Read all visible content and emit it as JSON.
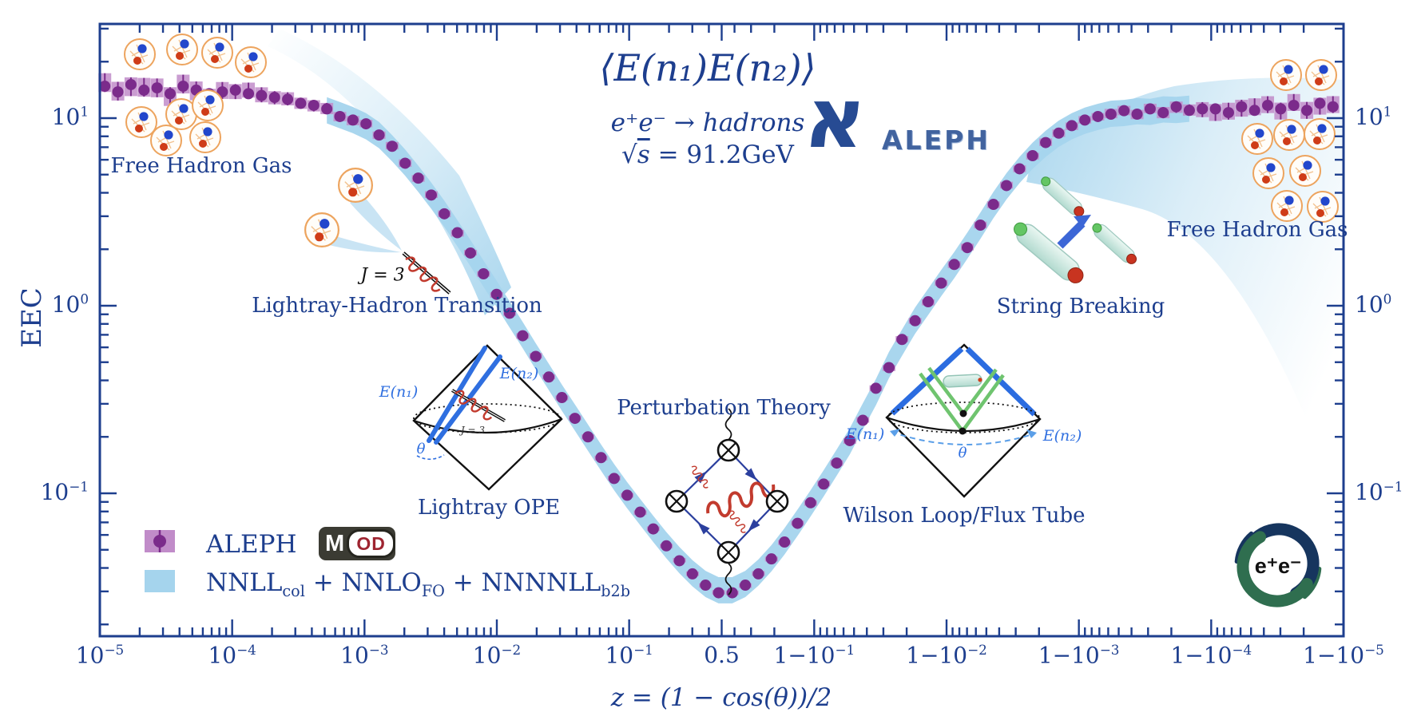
{
  "colors": {
    "navy": "#1d3e8e",
    "band": "#a5d4ed",
    "marker": "#7b2b8b",
    "error_box": "#c18cc9",
    "coil_red": "#c23b2e",
    "line_blue": "#2f6fe0",
    "feyn_blue": "#2b3f9e",
    "green": "#6fc46f",
    "hadron_ring": "#eda45e",
    "hadron_blue": "#2247cc",
    "hadron_red": "#cf3c18",
    "mod_bg": "#3b3b33",
    "mod_red": "#9e2430"
  },
  "title": {
    "correlator": "⟨E(n₁)E(n₂)⟩",
    "process": "e⁺e⁻ → hadrons",
    "energy": {
      "rad": "√",
      "var": "s",
      "rest": " = 91.2GeV"
    }
  },
  "aleph_logo": {
    "glyph": "א",
    "text": "ALEPH"
  },
  "collider_logo": {
    "text": "e⁺e⁻"
  },
  "axis": {
    "x_label": "z = (1 − cos(θ))/2",
    "y_label": "EEC"
  },
  "annotations": {
    "free_hadron_gas_left": "Free Hadron Gas",
    "free_hadron_gas_right": "Free Hadron Gas",
    "lightray_transition": "Lightray-Hadron Transition",
    "j_equals_3": "J = 3",
    "lightray_ope": "Lightray OPE",
    "perturbation_theory": "Perturbation Theory",
    "wilson_loop": "Wilson Loop/Flux Tube",
    "string_breaking": "String Breaking",
    "energy_n1": "E(n₁)",
    "energy_n2": "E(n₂)",
    "theta": "θ",
    "j3_small": "J = 3"
  },
  "legend": {
    "aleph": "ALEPH",
    "mod": {
      "m": "M",
      "od": "OD"
    },
    "theory": [
      {
        "t": "NNLL",
        "s": "col"
      },
      {
        "t": " + NNLO",
        "s": "FO"
      },
      {
        "t": " + NNNNLL",
        "s": "b2b"
      }
    ]
  },
  "chart_data": {
    "type": "scatter",
    "title": "⟨E(n₁)E(n₂)⟩  e⁺e⁻ → hadrons  √s = 91.2GeV",
    "xlabel": "z = (1 − cos(θ))/2",
    "ylabel": "EEC",
    "x_scale": "double-log: log10(z) for z<0.5, mirrored log10(1−z) for z>0.5",
    "ylim": [
      0.017,
      32
    ],
    "grid": false,
    "legend_position": "lower left",
    "x_ticks": [
      {
        "pre": "10",
        "exp": "−5",
        "frac": 0.0
      },
      {
        "pre": "10",
        "exp": "−4",
        "frac": 0.1064
      },
      {
        "pre": "10",
        "exp": "−3",
        "frac": 0.2128
      },
      {
        "pre": "10",
        "exp": "−2",
        "frac": 0.3192
      },
      {
        "pre": "10",
        "exp": "−1",
        "frac": 0.4256
      },
      {
        "pre": "0.5",
        "exp": "",
        "frac": 0.5
      },
      {
        "pre": "1−10",
        "exp": "−1",
        "frac": 0.5744
      },
      {
        "pre": "1−10",
        "exp": "−2",
        "frac": 0.6808
      },
      {
        "pre": "1−10",
        "exp": "−3",
        "frac": 0.7872
      },
      {
        "pre": "1−10",
        "exp": "−4",
        "frac": 0.8936
      },
      {
        "pre": "1−10",
        "exp": "−5",
        "frac": 1.0
      }
    ],
    "y_ticks": [
      {
        "pre": "10",
        "exp": "1",
        "value": 10
      },
      {
        "pre": "10",
        "exp": "0",
        "value": 1
      },
      {
        "pre": "10",
        "exp": "−1",
        "value": 0.1
      }
    ],
    "series": [
      {
        "name": "ALEPH MOD",
        "style": "points"
      },
      {
        "name": "NNLL_col + NNLO_FO + NNNNLL_b2b",
        "style": "band",
        "halfwidth_dex": 0.07,
        "t_range": [
          0.175,
          0.878
        ]
      }
    ],
    "points": [
      [
        0.004,
        14.8,
        0.05
      ],
      [
        0.0145,
        13.8,
        0.05
      ],
      [
        0.025,
        15.1,
        0.05
      ],
      [
        0.0355,
        14.1,
        0.05
      ],
      [
        0.046,
        14.5,
        0.05
      ],
      [
        0.0565,
        13.5,
        0.05
      ],
      [
        0.067,
        14.8,
        0.05
      ],
      [
        0.0775,
        14.1,
        0.05
      ],
      [
        0.088,
        13.5,
        0.045
      ],
      [
        0.0985,
        13.8,
        0.045
      ],
      [
        0.109,
        14.1,
        0.04
      ],
      [
        0.1195,
        13.5,
        0.04
      ],
      [
        0.13,
        13.2,
        0.04
      ],
      [
        0.1405,
        12.9,
        0.035
      ],
      [
        0.151,
        12.6,
        0.035
      ],
      [
        0.1615,
        12.0,
        0.03
      ],
      [
        0.172,
        11.7,
        0.03
      ],
      [
        0.1825,
        11.2,
        0.03
      ],
      [
        0.193,
        10.2,
        0.025
      ],
      [
        0.2035,
        9.77,
        0.025
      ],
      [
        0.214,
        9.33,
        0.02
      ],
      [
        0.2245,
        8.13,
        0.02
      ],
      [
        0.235,
        7.08,
        0.02
      ],
      [
        0.2455,
        5.75,
        0.02
      ],
      [
        0.256,
        4.79,
        0.018
      ],
      [
        0.2665,
        3.89,
        0.018
      ],
      [
        0.277,
        3.09,
        0.018
      ],
      [
        0.2875,
        2.45,
        0.018
      ],
      [
        0.298,
        1.91,
        0.015
      ],
      [
        0.3085,
        1.48,
        0.015
      ],
      [
        0.319,
        1.15,
        0.015
      ],
      [
        0.3295,
        0.912,
        0.015
      ],
      [
        0.34,
        0.692,
        0.015
      ],
      [
        0.3505,
        0.537,
        0.015
      ],
      [
        0.361,
        0.417,
        0.013
      ],
      [
        0.3715,
        0.324,
        0.013
      ],
      [
        0.382,
        0.251,
        0.013
      ],
      [
        0.3925,
        0.2,
        0.013
      ],
      [
        0.403,
        0.155,
        0.013
      ],
      [
        0.4135,
        0.12,
        0.013
      ],
      [
        0.424,
        0.0977,
        0.012
      ],
      [
        0.4345,
        0.0794,
        0.012
      ],
      [
        0.445,
        0.0646,
        0.012
      ],
      [
        0.4555,
        0.0525,
        0.012
      ],
      [
        0.466,
        0.0437,
        0.012
      ],
      [
        0.4765,
        0.0372,
        0.012
      ],
      [
        0.487,
        0.0324,
        0.012
      ],
      [
        0.4975,
        0.0295,
        0.012
      ],
      [
        0.5085,
        0.0295,
        0.012
      ],
      [
        0.519,
        0.0324,
        0.012
      ],
      [
        0.5295,
        0.0372,
        0.013
      ],
      [
        0.54,
        0.0447,
        0.013
      ],
      [
        0.5505,
        0.055,
        0.013
      ],
      [
        0.561,
        0.0692,
        0.013
      ],
      [
        0.5715,
        0.0891,
        0.015
      ],
      [
        0.582,
        0.112,
        0.015
      ],
      [
        0.5925,
        0.145,
        0.015
      ],
      [
        0.603,
        0.191,
        0.015
      ],
      [
        0.6135,
        0.245,
        0.015
      ],
      [
        0.624,
        0.363,
        0.016
      ],
      [
        0.6345,
        0.468,
        0.016
      ],
      [
        0.645,
        0.661,
        0.016
      ],
      [
        0.6555,
        0.832,
        0.016
      ],
      [
        0.666,
        1.05,
        0.016
      ],
      [
        0.6765,
        1.32,
        0.016
      ],
      [
        0.687,
        1.66,
        0.018
      ],
      [
        0.6975,
        2.04,
        0.018
      ],
      [
        0.708,
        2.69,
        0.018
      ],
      [
        0.7185,
        3.47,
        0.018
      ],
      [
        0.729,
        4.37,
        0.018
      ],
      [
        0.7395,
        5.37,
        0.018
      ],
      [
        0.75,
        6.31,
        0.018
      ],
      [
        0.7605,
        7.41,
        0.02
      ],
      [
        0.771,
        8.32,
        0.02
      ],
      [
        0.7815,
        9.12,
        0.02
      ],
      [
        0.792,
        9.77,
        0.02
      ],
      [
        0.8025,
        10.2,
        0.02
      ],
      [
        0.813,
        10.5,
        0.025
      ],
      [
        0.8235,
        10.96,
        0.025
      ],
      [
        0.834,
        10.5,
        0.025
      ],
      [
        0.8445,
        11.2,
        0.025
      ],
      [
        0.855,
        10.7,
        0.03
      ],
      [
        0.8655,
        11.5,
        0.03
      ],
      [
        0.876,
        11.0,
        0.03
      ],
      [
        0.8865,
        11.2,
        0.04
      ],
      [
        0.897,
        11.2,
        0.045
      ],
      [
        0.9075,
        10.7,
        0.045
      ],
      [
        0.918,
        11.5,
        0.045
      ],
      [
        0.9285,
        11.0,
        0.045
      ],
      [
        0.939,
        11.7,
        0.045
      ],
      [
        0.9495,
        11.2,
        0.045
      ],
      [
        0.96,
        11.7,
        0.045
      ],
      [
        0.9705,
        11.0,
        0.045
      ],
      [
        0.981,
        12.0,
        0.045
      ],
      [
        0.9915,
        11.5,
        0.045
      ]
    ]
  }
}
